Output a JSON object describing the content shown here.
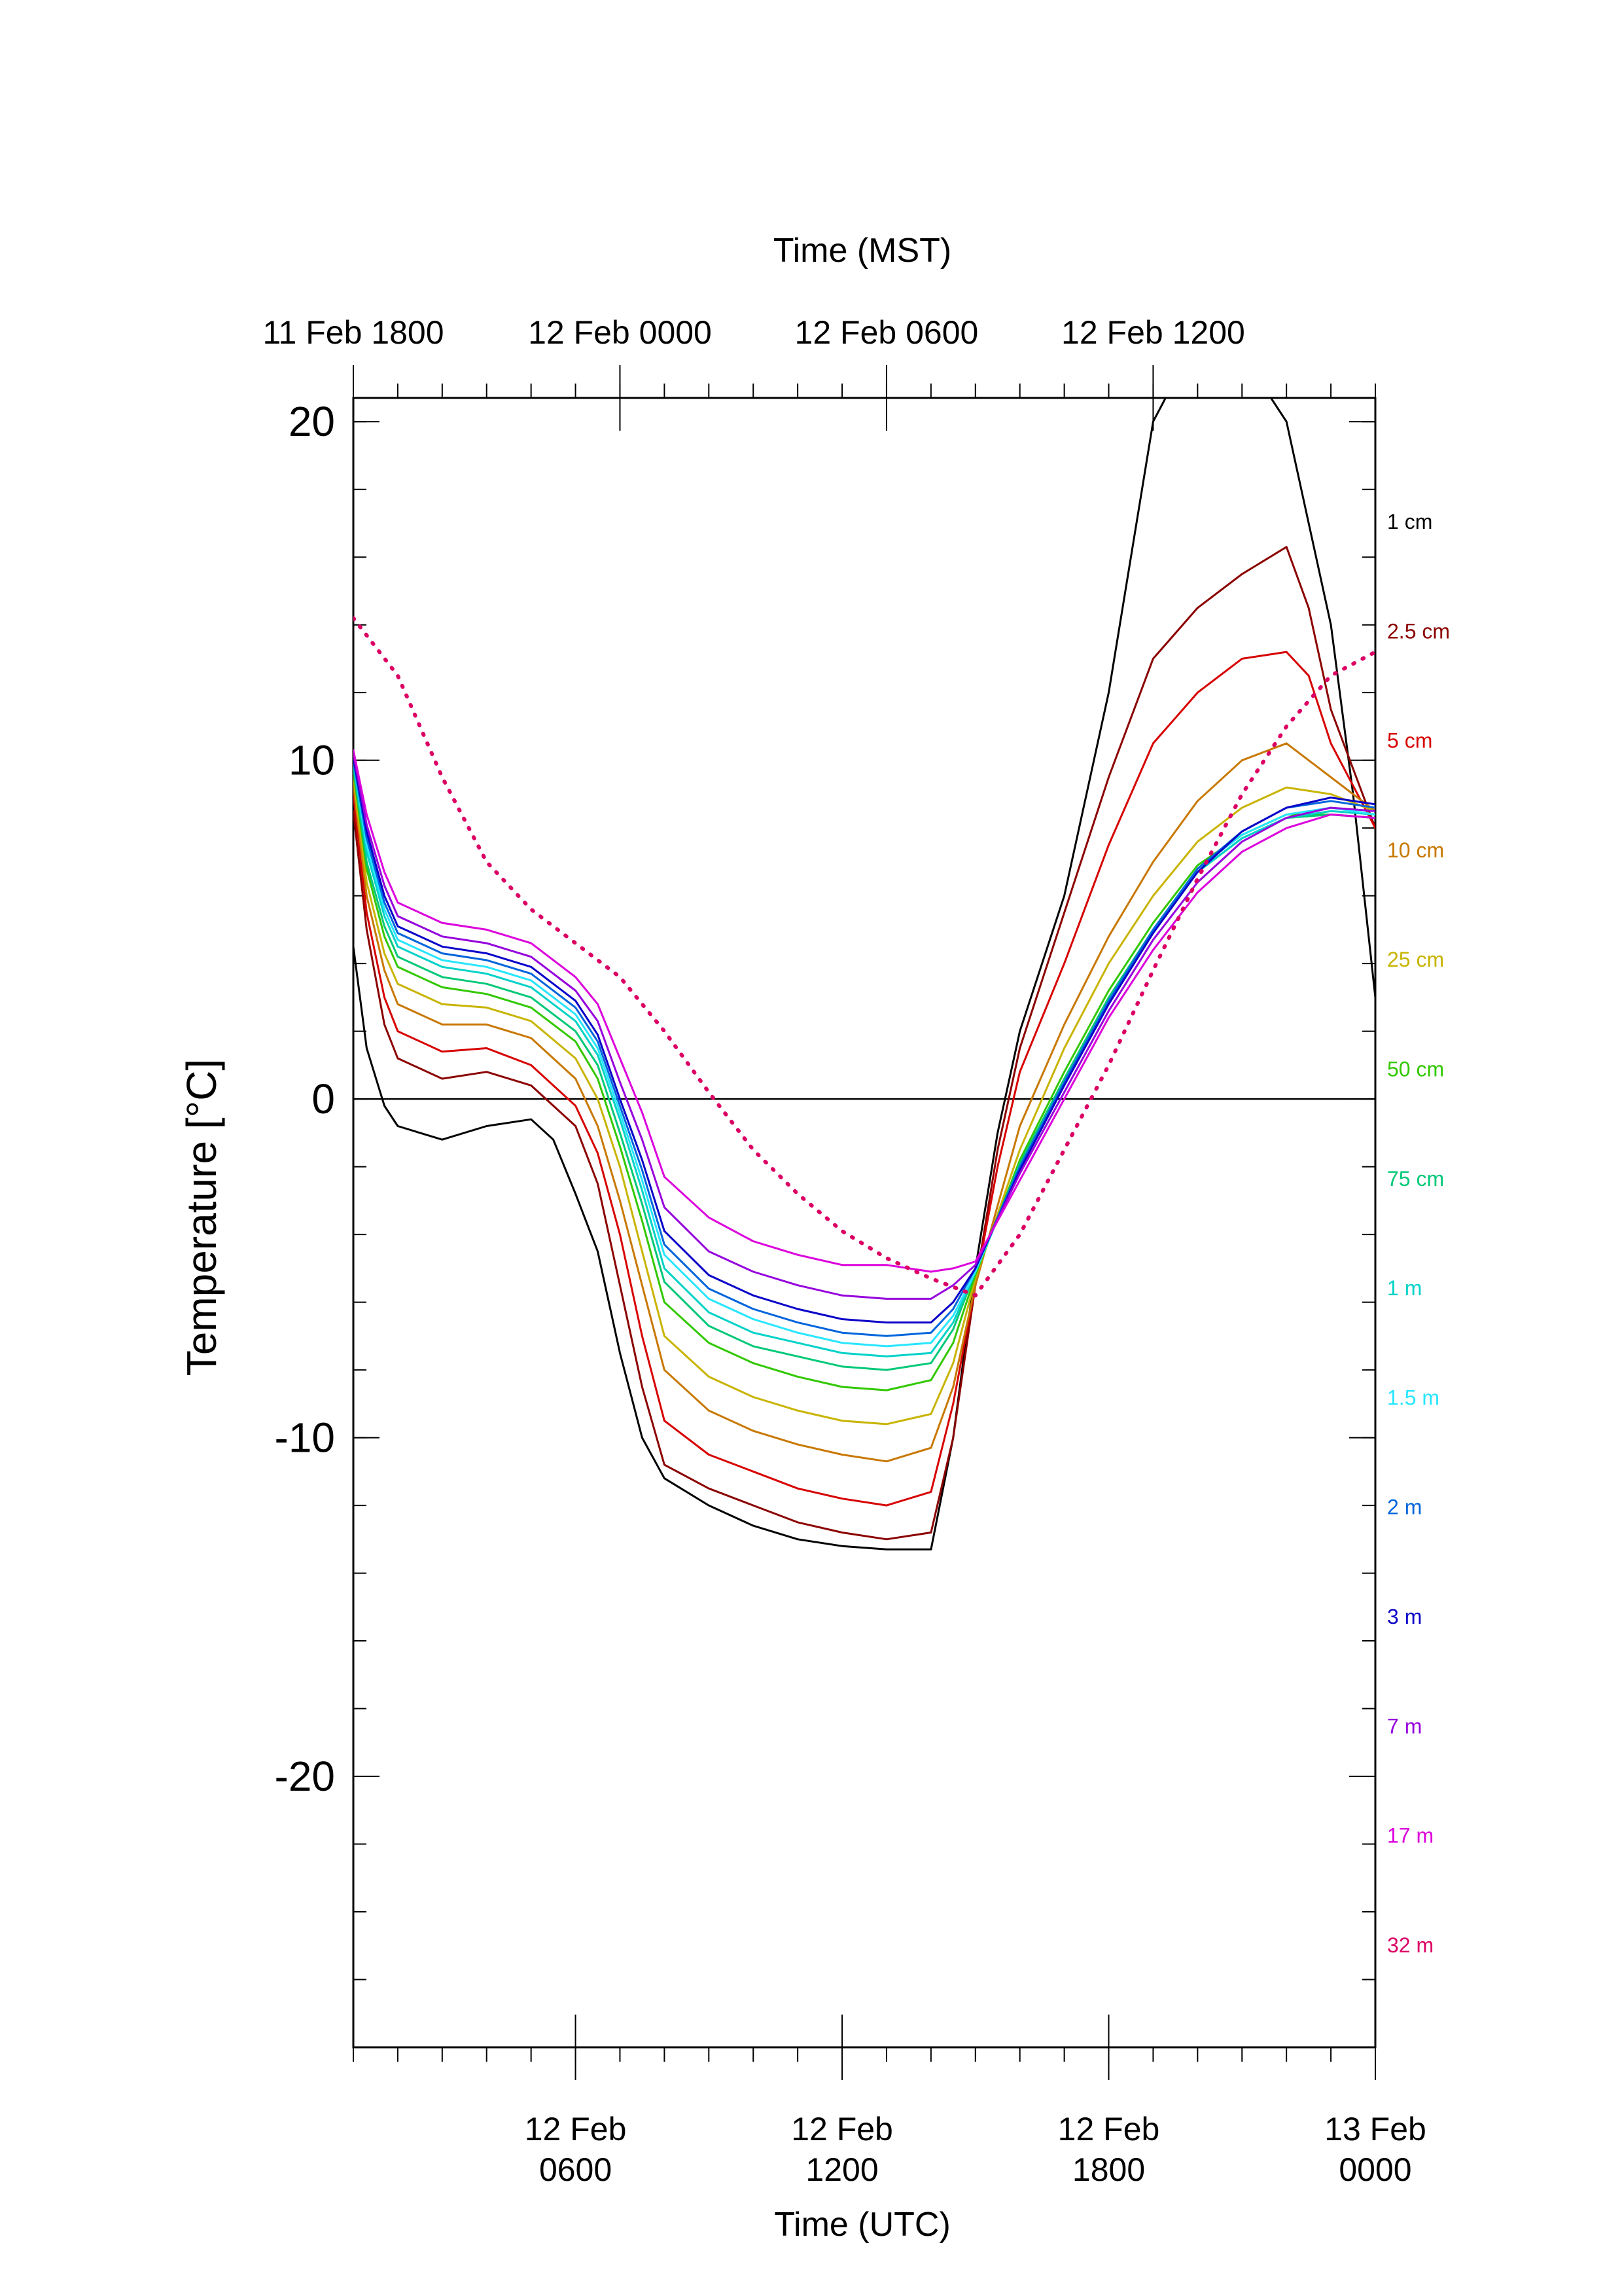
{
  "chart_data": {
    "type": "line",
    "title": "",
    "xlabel_bottom": "Time (UTC)",
    "xlabel_top": "Time (MST)",
    "ylabel": "Temperature [°C]",
    "xlim_hours_utc": [
      1,
      24
    ],
    "ylim": [
      -28,
      20.7
    ],
    "x_units": "hours since 12 Feb 0000 UTC",
    "bottom_ticks": [
      {
        "x": 6,
        "line1": "12 Feb",
        "line2": "0600"
      },
      {
        "x": 12,
        "line1": "12 Feb",
        "line2": "1200"
      },
      {
        "x": 18,
        "line1": "12 Feb",
        "line2": "1800"
      },
      {
        "x": 24,
        "line1": "13 Feb",
        "line2": "0000"
      }
    ],
    "top_ticks": [
      {
        "x": 1,
        "label": "11 Feb 1800"
      },
      {
        "x": 7,
        "label": "12 Feb 0000"
      },
      {
        "x": 13,
        "label": "12 Feb 0600"
      },
      {
        "x": 19,
        "label": "12 Feb 1200"
      }
    ],
    "y_ticks": [
      20,
      10,
      0,
      -10,
      -20
    ],
    "zero_line": true,
    "legend_position": "right-outside",
    "series": [
      {
        "name": "1 cm",
        "color": "#000000",
        "x": [
          1,
          1.3,
          1.7,
          2,
          3,
          4,
          5,
          5.5,
          6,
          6.5,
          7,
          7.5,
          8,
          9,
          10,
          11,
          12,
          13,
          14,
          14.5,
          15,
          15.5,
          16,
          17,
          18,
          19,
          20,
          21,
          22,
          23,
          23.5,
          24
        ],
        "y": [
          4.5,
          1.5,
          -0.2,
          -0.8,
          -1.2,
          -0.8,
          -0.6,
          -1.2,
          -2.8,
          -4.5,
          -7.5,
          -10,
          -11.2,
          -12,
          -12.6,
          -13,
          -13.2,
          -13.3,
          -13.3,
          -10,
          -5,
          -1,
          2,
          6,
          12,
          20,
          22.5,
          22,
          20,
          14,
          9,
          3
        ]
      },
      {
        "name": "2.5 cm",
        "color": "#8b0000",
        "x": [
          1,
          1.3,
          1.7,
          2,
          3,
          4,
          5,
          6,
          6.5,
          7,
          7.5,
          8,
          9,
          10,
          11,
          12,
          13,
          14,
          14.5,
          15,
          15.5,
          16,
          17,
          18,
          19,
          20,
          21,
          22,
          22.5,
          23,
          24
        ],
        "y": [
          8.5,
          5,
          2.2,
          1.2,
          0.6,
          0.8,
          0.4,
          -0.8,
          -2.5,
          -5.5,
          -8.5,
          -10.8,
          -11.5,
          -12,
          -12.5,
          -12.8,
          -13,
          -12.8,
          -10,
          -5.5,
          -1.5,
          1.5,
          5.5,
          9.5,
          13,
          14.5,
          15.5,
          16.3,
          14.5,
          11.5,
          8
        ]
      },
      {
        "name": "5 cm",
        "color": "#d70000",
        "x": [
          1,
          1.3,
          1.7,
          2,
          3,
          4,
          5,
          6,
          6.5,
          7,
          7.5,
          8,
          9,
          10,
          11,
          12,
          13,
          14,
          14.5,
          15,
          15.5,
          16,
          17,
          18,
          19,
          20,
          21,
          22,
          22.5,
          23,
          24
        ],
        "y": [
          9,
          5.5,
          3,
          2,
          1.4,
          1.5,
          1,
          -0.2,
          -1.6,
          -4,
          -7,
          -9.5,
          -10.5,
          -11,
          -11.5,
          -11.8,
          -12,
          -11.6,
          -9,
          -5.5,
          -2,
          0.8,
          4,
          7.5,
          10.5,
          12,
          13,
          13.2,
          12.5,
          10.5,
          8
        ]
      },
      {
        "name": "10 cm",
        "color": "#c87800",
        "x": [
          1,
          1.3,
          1.7,
          2,
          3,
          4,
          5,
          6,
          6.5,
          7,
          7.5,
          8,
          9,
          10,
          11,
          12,
          13,
          14,
          14.5,
          15,
          16,
          17,
          18,
          19,
          20,
          21,
          22,
          23,
          24
        ],
        "y": [
          9.3,
          6,
          3.8,
          2.8,
          2.2,
          2.2,
          1.8,
          0.6,
          -0.8,
          -3,
          -5.5,
          -8,
          -9.2,
          -9.8,
          -10.2,
          -10.5,
          -10.7,
          -10.3,
          -8.5,
          -5.5,
          -0.8,
          2.2,
          4.8,
          7,
          8.8,
          10,
          10.5,
          9.5,
          8.5
        ]
      },
      {
        "name": "25 cm",
        "color": "#c8b400",
        "x": [
          1,
          1.3,
          1.7,
          2,
          3,
          4,
          5,
          6,
          6.5,
          7,
          7.5,
          8,
          9,
          10,
          11,
          12,
          13,
          14,
          14.5,
          15,
          16,
          17,
          18,
          19,
          20,
          21,
          22,
          23,
          24
        ],
        "y": [
          9.5,
          6.4,
          4.3,
          3.4,
          2.8,
          2.7,
          2.3,
          1.2,
          0,
          -2,
          -4.5,
          -7,
          -8.2,
          -8.8,
          -9.2,
          -9.5,
          -9.6,
          -9.3,
          -7.8,
          -5.3,
          -1.5,
          1.5,
          4,
          6,
          7.6,
          8.6,
          9.2,
          9,
          8.5
        ]
      },
      {
        "name": "50 cm",
        "color": "#32c800",
        "x": [
          1,
          1.3,
          1.7,
          2,
          3,
          4,
          5,
          6,
          6.5,
          7,
          7.5,
          8,
          9,
          10,
          11,
          12,
          13,
          14,
          14.5,
          15,
          16,
          17,
          18,
          19,
          20,
          21,
          22,
          23,
          24
        ],
        "y": [
          9.7,
          6.8,
          4.8,
          3.9,
          3.3,
          3.1,
          2.7,
          1.7,
          0.6,
          -1.4,
          -3.6,
          -6,
          -7.2,
          -7.8,
          -8.2,
          -8.5,
          -8.6,
          -8.3,
          -7.2,
          -5.2,
          -1.8,
          0.8,
          3.2,
          5.2,
          6.9,
          7.8,
          8.4,
          8.4,
          8.3
        ]
      },
      {
        "name": "75 cm",
        "color": "#00c878",
        "x": [
          1,
          1.3,
          1.7,
          2,
          3,
          4,
          5,
          6,
          6.5,
          7,
          7.5,
          8,
          9,
          10,
          11,
          12,
          13,
          14,
          14.5,
          15,
          16,
          17,
          18,
          19,
          20,
          21,
          22,
          23,
          24
        ],
        "y": [
          9.8,
          7,
          5.1,
          4.2,
          3.6,
          3.4,
          3,
          2,
          1,
          -1,
          -3.1,
          -5.4,
          -6.7,
          -7.3,
          -7.6,
          -7.9,
          -8,
          -7.8,
          -6.8,
          -5.1,
          -1.9,
          0.6,
          3,
          5,
          6.7,
          7.7,
          8.3,
          8.4,
          8.3
        ]
      },
      {
        "name": "1 m",
        "color": "#00d2c8",
        "x": [
          1,
          1.3,
          1.7,
          2,
          3,
          4,
          5,
          6,
          6.5,
          7,
          7.5,
          8,
          9,
          10,
          11,
          12,
          13,
          14,
          14.5,
          15,
          16,
          17,
          18,
          19,
          20,
          21,
          22,
          23,
          24
        ],
        "y": [
          9.9,
          7.3,
          5.4,
          4.5,
          3.9,
          3.7,
          3.3,
          2.3,
          1.3,
          -0.6,
          -2.7,
          -5,
          -6.3,
          -6.9,
          -7.2,
          -7.5,
          -7.6,
          -7.5,
          -6.6,
          -5.1,
          -2,
          0.5,
          2.9,
          5,
          6.7,
          7.7,
          8.3,
          8.5,
          8.4
        ]
      },
      {
        "name": "1.5 m",
        "color": "#28e6ff",
        "x": [
          1,
          1.3,
          1.7,
          2,
          3,
          4,
          5,
          6,
          6.5,
          7,
          7.5,
          8,
          9,
          10,
          11,
          12,
          13,
          14,
          14.5,
          15,
          16,
          17,
          18,
          19,
          20,
          21,
          22,
          23,
          24
        ],
        "y": [
          10,
          7.5,
          5.6,
          4.7,
          4.1,
          3.9,
          3.5,
          2.5,
          1.5,
          -0.4,
          -2.4,
          -4.6,
          -5.9,
          -6.5,
          -6.9,
          -7.2,
          -7.3,
          -7.2,
          -6.4,
          -5.1,
          -2,
          0.5,
          2.9,
          5,
          6.8,
          7.8,
          8.4,
          8.6,
          8.4
        ]
      },
      {
        "name": "2 m",
        "color": "#0064dc",
        "x": [
          1,
          1.3,
          1.7,
          2,
          3,
          4,
          5,
          6,
          6.5,
          7,
          7.5,
          8,
          9,
          10,
          11,
          12,
          13,
          14,
          14.5,
          15,
          16,
          17,
          18,
          19,
          20,
          21,
          22,
          23,
          24
        ],
        "y": [
          10,
          7.7,
          5.8,
          4.9,
          4.3,
          4.1,
          3.7,
          2.7,
          1.7,
          -0.2,
          -2.1,
          -4.3,
          -5.6,
          -6.2,
          -6.6,
          -6.9,
          -7,
          -6.9,
          -6.2,
          -5,
          -2,
          0.5,
          2.9,
          5,
          6.8,
          7.9,
          8.6,
          8.8,
          8.6
        ]
      },
      {
        "name": "3 m",
        "color": "#0a00c8",
        "x": [
          1,
          1.3,
          1.7,
          2,
          3,
          4,
          5,
          6,
          6.5,
          7,
          7.5,
          8,
          9,
          10,
          11,
          12,
          13,
          14,
          14.5,
          15,
          16,
          17,
          18,
          19,
          20,
          21,
          22,
          23,
          24
        ],
        "y": [
          10.1,
          7.9,
          6,
          5.1,
          4.5,
          4.3,
          3.9,
          2.9,
          1.9,
          0,
          -1.8,
          -3.9,
          -5.2,
          -5.8,
          -6.2,
          -6.5,
          -6.6,
          -6.6,
          -6,
          -5,
          -2.1,
          0.4,
          2.8,
          4.9,
          6.7,
          7.9,
          8.6,
          8.9,
          8.7
        ]
      },
      {
        "name": "7 m",
        "color": "#9600dc",
        "x": [
          1,
          1.3,
          1.7,
          2,
          3,
          4,
          5,
          6,
          6.5,
          7,
          7.5,
          8,
          9,
          10,
          11,
          12,
          13,
          14,
          14.5,
          15,
          16,
          17,
          18,
          19,
          20,
          21,
          22,
          23,
          24
        ],
        "y": [
          10.2,
          8.1,
          6.3,
          5.4,
          4.8,
          4.6,
          4.2,
          3.2,
          2.3,
          0.5,
          -1.2,
          -3.2,
          -4.5,
          -5.1,
          -5.5,
          -5.8,
          -5.9,
          -5.9,
          -5.5,
          -4.9,
          -2.2,
          0.2,
          2.6,
          4.7,
          6.4,
          7.6,
          8.3,
          8.6,
          8.5
        ]
      },
      {
        "name": "17 m",
        "color": "#dc00dc",
        "x": [
          1,
          1.3,
          1.7,
          2,
          3,
          4,
          5,
          6,
          6.5,
          7,
          7.5,
          8,
          9,
          10,
          11,
          12,
          13,
          14,
          14.5,
          15,
          16,
          17,
          18,
          19,
          20,
          21,
          22,
          23,
          24
        ],
        "y": [
          10.3,
          8.4,
          6.7,
          5.8,
          5.2,
          5,
          4.6,
          3.6,
          2.8,
          1.2,
          -0.4,
          -2.3,
          -3.5,
          -4.2,
          -4.6,
          -4.9,
          -4.9,
          -5.1,
          -5,
          -4.8,
          -2.4,
          0,
          2.4,
          4.4,
          6.1,
          7.3,
          8,
          8.4,
          8.3
        ]
      },
      {
        "name": "32 m",
        "color": "#dc0064",
        "dotted": true,
        "x": [
          1,
          2,
          3,
          4,
          5,
          6,
          7,
          8,
          9,
          10,
          11,
          12,
          13,
          14,
          15,
          16,
          17,
          18,
          19,
          20,
          21,
          22,
          23,
          24
        ],
        "y": [
          14.2,
          12.5,
          9.5,
          7,
          5.6,
          4.6,
          3.6,
          2,
          0.2,
          -1.5,
          -2.8,
          -3.9,
          -4.7,
          -5.3,
          -5.8,
          -4,
          -1.5,
          1,
          3.8,
          6.5,
          9,
          11,
          12.5,
          13.2
        ]
      }
    ]
  }
}
